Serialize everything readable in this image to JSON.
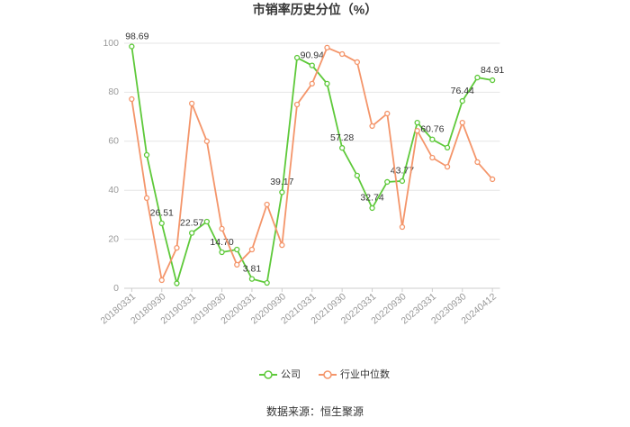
{
  "chart_data": {
    "type": "line",
    "title": "市销率历史分位（%）",
    "source": "数据来源：恒生聚源",
    "categories": [
      "20180331",
      null,
      "20180930",
      null,
      "20190331",
      null,
      "20190930",
      null,
      "20200331",
      null,
      "20200930",
      null,
      "20210331",
      null,
      "20210930",
      null,
      "20220331",
      null,
      "20220930",
      null,
      "20230331",
      null,
      "20230930",
      null,
      "20240412"
    ],
    "series": [
      {
        "name": "公司",
        "color": "#5ec93a",
        "values": [
          98.69,
          54.4,
          26.51,
          2,
          22.57,
          27.2,
          14.7,
          15.8,
          3.81,
          2.2,
          39.17,
          94.1,
          90.94,
          83.5,
          57.28,
          46,
          32.74,
          43.4,
          43.77,
          67.6,
          60.76,
          57.4,
          76.44,
          86,
          84.91
        ],
        "value_labels": [
          "98.69",
          null,
          "26.51",
          null,
          "22.57",
          null,
          "14.70",
          null,
          "3.81",
          null,
          "39.17",
          null,
          "90.94",
          null,
          "57.28",
          null,
          "32.74",
          null,
          "43.77",
          null,
          "60.76",
          null,
          "76.44",
          null,
          "84.91"
        ]
      },
      {
        "name": "行业中位数",
        "color": "#f4956a",
        "values": [
          77.2,
          36.8,
          3.3,
          16.5,
          75.4,
          60,
          24.3,
          9.6,
          15.8,
          34.2,
          17.6,
          75,
          83.5,
          98.2,
          95.6,
          92.3,
          66.2,
          71.3,
          25,
          64.3,
          53.3,
          49.6,
          67.6,
          51.5,
          44.5
        ]
      }
    ],
    "ylim": [
      0,
      100
    ],
    "yticks": [
      0,
      20,
      40,
      60,
      80,
      100
    ],
    "grid": true,
    "legend": "bottom"
  }
}
